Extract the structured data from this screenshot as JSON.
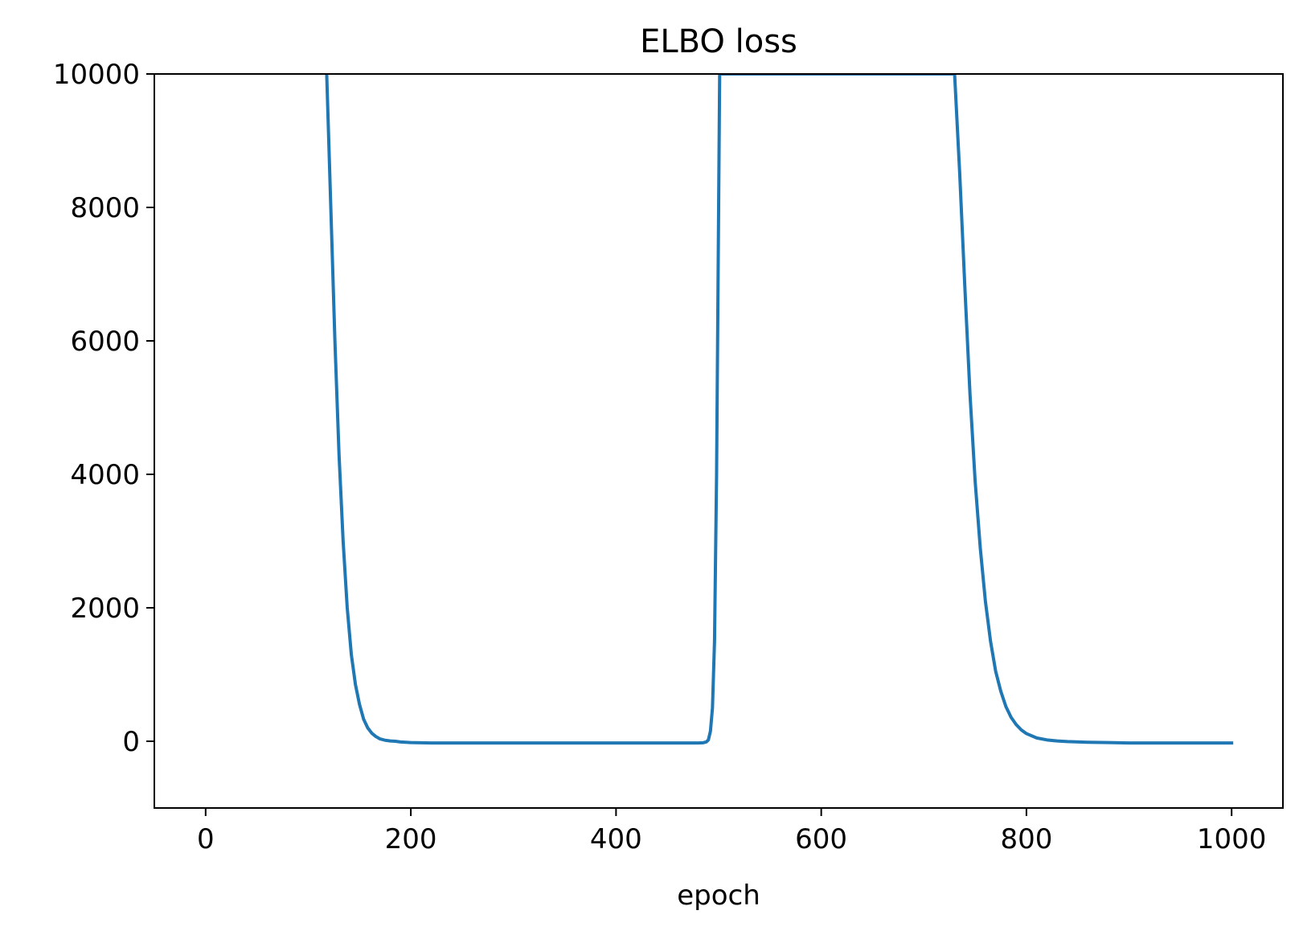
{
  "chart_data": {
    "type": "line",
    "title": "ELBO loss",
    "xlabel": "epoch",
    "ylabel": "",
    "xlim": [
      -50,
      1050
    ],
    "ylim": [
      -1000,
      10000
    ],
    "xticks": [
      0,
      200,
      400,
      600,
      800,
      1000
    ],
    "yticks": [
      0,
      2000,
      4000,
      6000,
      8000,
      10000
    ],
    "xtick_labels": [
      "0",
      "200",
      "400",
      "600",
      "800",
      "1000"
    ],
    "ytick_labels": [
      "0",
      "2000",
      "4000",
      "6000",
      "8000",
      "10000"
    ],
    "grid": false,
    "colors": {
      "series": "#1f77b4"
    },
    "series": [
      {
        "x": [
          118,
          122,
          126,
          130,
          134,
          138,
          142,
          146,
          150,
          154,
          158,
          162,
          166,
          170,
          175,
          180,
          185,
          190,
          200,
          220,
          250,
          300,
          350,
          400,
          450,
          480,
          485,
          488,
          490,
          492,
          494,
          496,
          498,
          500,
          501,
          730,
          735,
          740,
          745,
          750,
          755,
          760,
          765,
          770,
          775,
          780,
          785,
          790,
          795,
          800,
          810,
          820,
          830,
          840,
          860,
          880,
          900,
          950,
          1000
        ],
        "values": [
          10000,
          8000,
          6000,
          4300,
          3000,
          2000,
          1300,
          850,
          550,
          330,
          200,
          120,
          70,
          35,
          15,
          5,
          0,
          -10,
          -20,
          -25,
          -25,
          -25,
          -25,
          -25,
          -25,
          -25,
          -22,
          -10,
          20,
          150,
          500,
          1500,
          4000,
          8000,
          10000,
          10000,
          8500,
          6800,
          5200,
          3900,
          2900,
          2100,
          1500,
          1050,
          750,
          520,
          360,
          250,
          170,
          115,
          50,
          20,
          5,
          -5,
          -15,
          -20,
          -25,
          -25,
          -25
        ]
      }
    ]
  }
}
